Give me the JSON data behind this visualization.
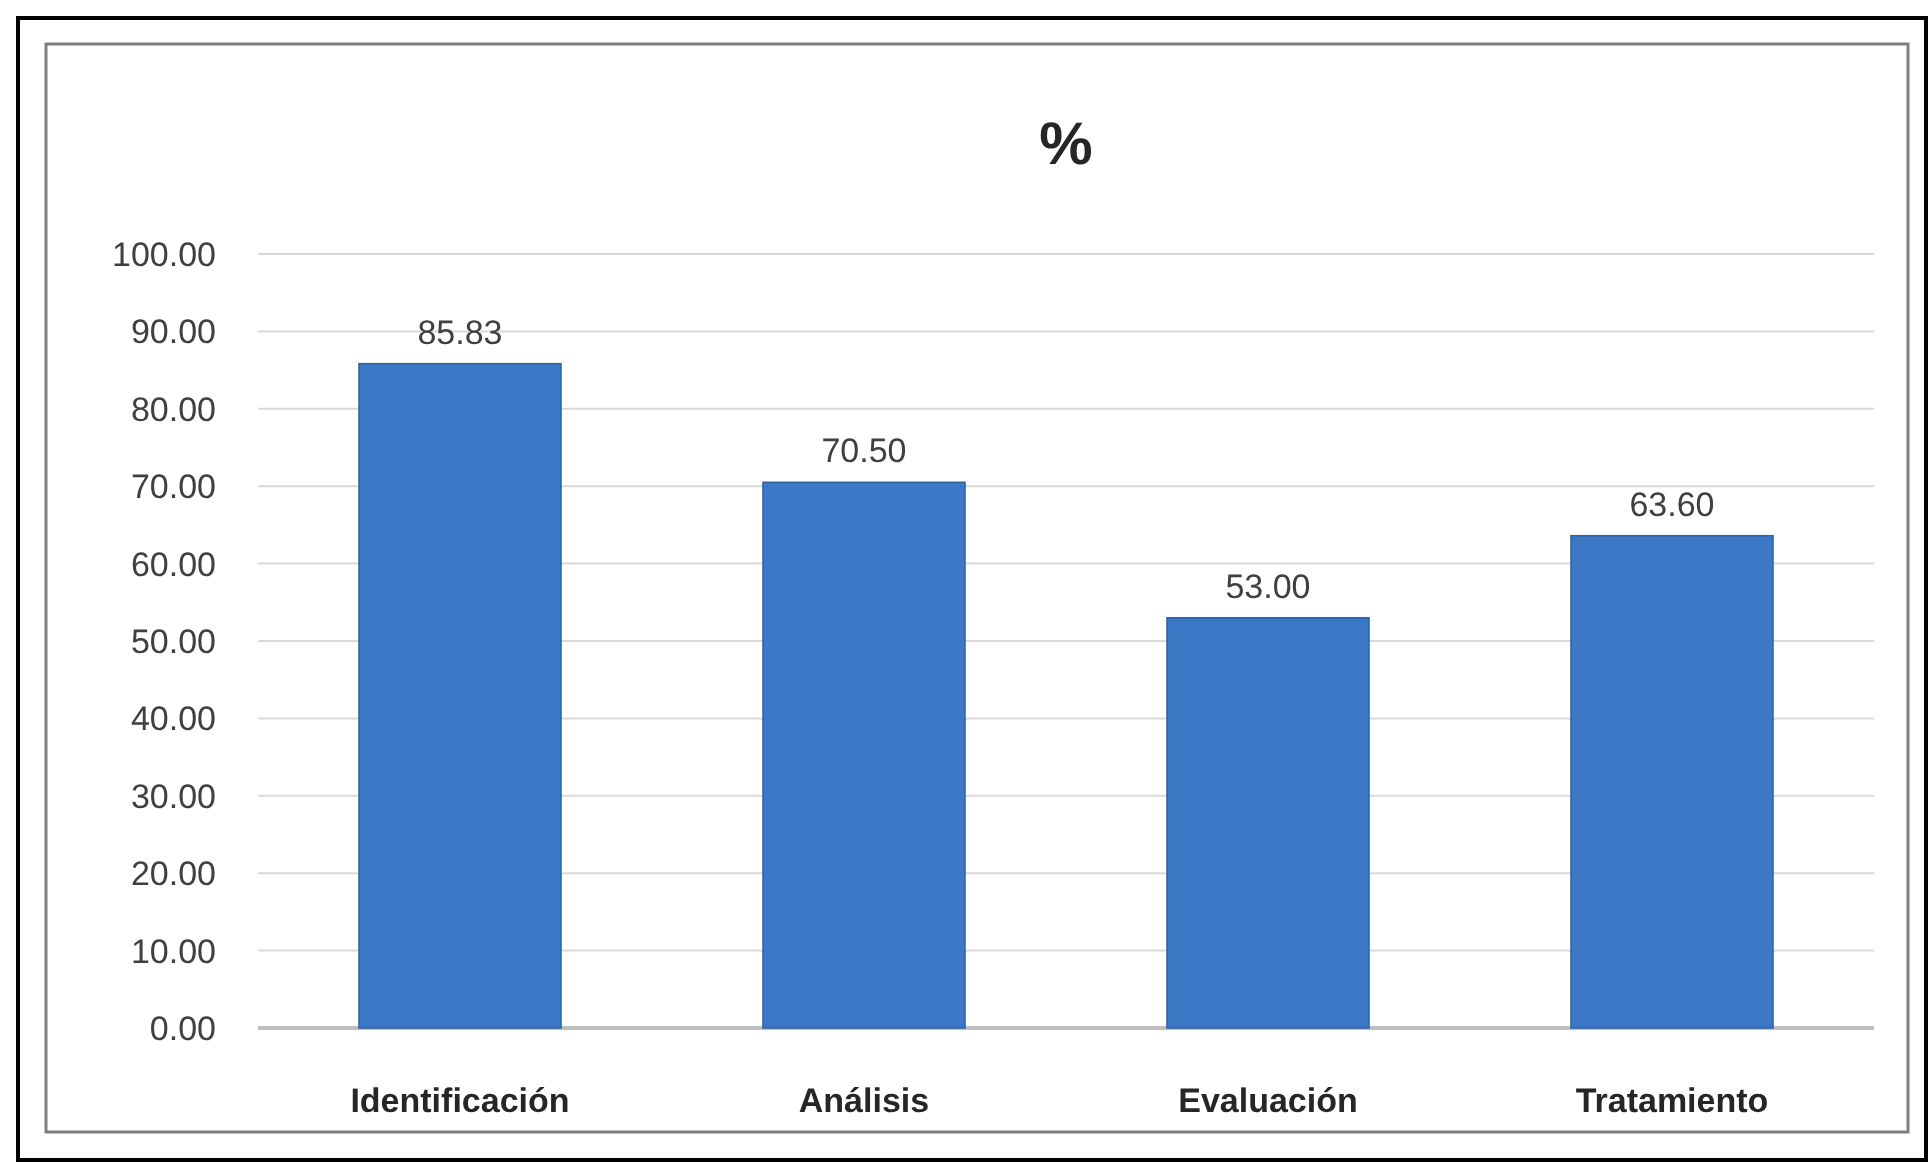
{
  "chart_data": {
    "type": "bar",
    "title": "%",
    "categories": [
      "Identificación",
      "Análisis",
      "Evaluación",
      "Tratamiento"
    ],
    "values": [
      85.83,
      70.5,
      53,
      63.6
    ],
    "color": "#3b78c6",
    "value_labels": [
      "85.83",
      "70.50",
      "53.00",
      "63.60"
    ],
    "ylim": [
      0,
      100
    ],
    "yticks": [
      {
        "value": 0,
        "label": "0.00"
      },
      {
        "value": 10,
        "label": "10.00"
      },
      {
        "value": 20,
        "label": "20.00"
      },
      {
        "value": 30,
        "label": "30.00"
      },
      {
        "value": 40,
        "label": "40.00"
      },
      {
        "value": 50,
        "label": "50.00"
      },
      {
        "value": 60,
        "label": "60.00"
      },
      {
        "value": 70,
        "label": "70.00"
      },
      {
        "value": 80,
        "label": "80.00"
      },
      {
        "value": 90,
        "label": "90.00"
      },
      {
        "value": 100,
        "label": "100.00"
      }
    ],
    "grid": "y"
  }
}
